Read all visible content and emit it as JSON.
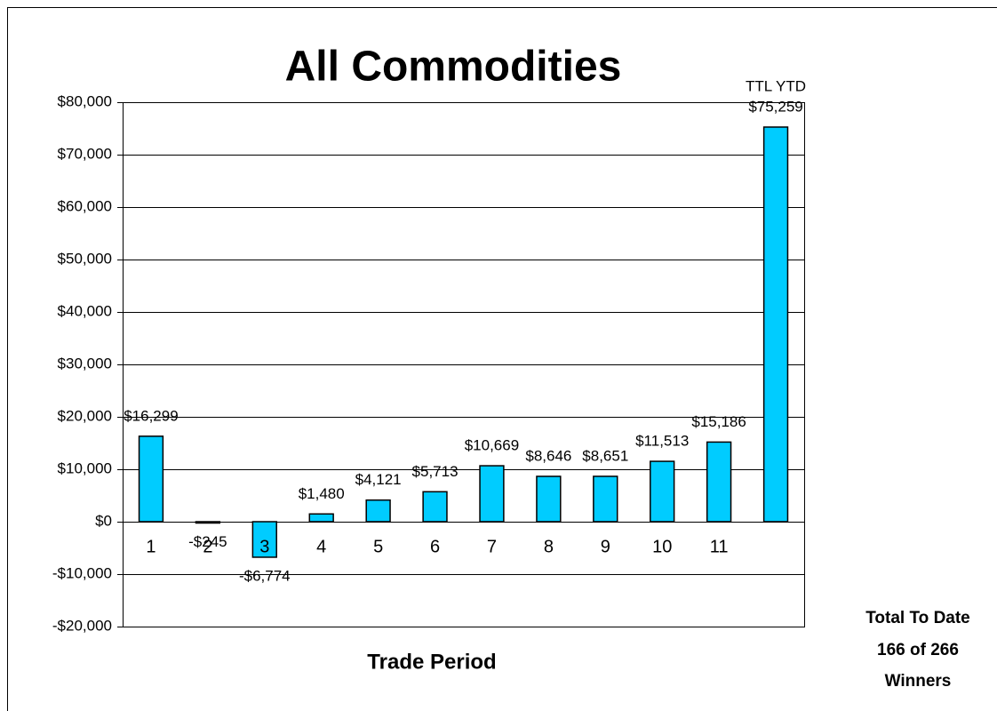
{
  "chart_data": {
    "type": "bar",
    "title": "All Commodities",
    "x_label": "Trade Period",
    "annotation": "TTL YTD",
    "notes": [
      "Total To Date",
      "166 of 266",
      "Winners"
    ],
    "categories": [
      "1",
      "2",
      "3",
      "4",
      "5",
      "6",
      "7",
      "8",
      "9",
      "10",
      "11",
      null
    ],
    "values": [
      16299,
      -245,
      -6774,
      1480,
      4121,
      5713,
      10669,
      8646,
      8651,
      11513,
      15186,
      75259
    ],
    "value_labels": [
      "$16,299",
      "-$245",
      "-$6,774",
      "$1,480",
      "$4,121",
      "$5,713",
      "$10,669",
      "$8,646",
      "$8,651",
      "$11,513",
      "$15,186",
      "$75,259"
    ],
    "color": "#00ccff",
    "ylim": [
      -20000,
      80000
    ],
    "yticks": [
      {
        "value": -20000,
        "label": "-$20,000"
      },
      {
        "value": -10000,
        "label": "-$10,000"
      },
      {
        "value": 0,
        "label": "$0"
      },
      {
        "value": 10000,
        "label": "$10,000"
      },
      {
        "value": 20000,
        "label": "$20,000"
      },
      {
        "value": 30000,
        "label": "$30,000"
      },
      {
        "value": 40000,
        "label": "$40,000"
      },
      {
        "value": 50000,
        "label": "$50,000"
      },
      {
        "value": 60000,
        "label": "$60,000"
      },
      {
        "value": 70000,
        "label": "$70,000"
      },
      {
        "value": 80000,
        "label": "$80,000"
      }
    ],
    "grid": true
  }
}
